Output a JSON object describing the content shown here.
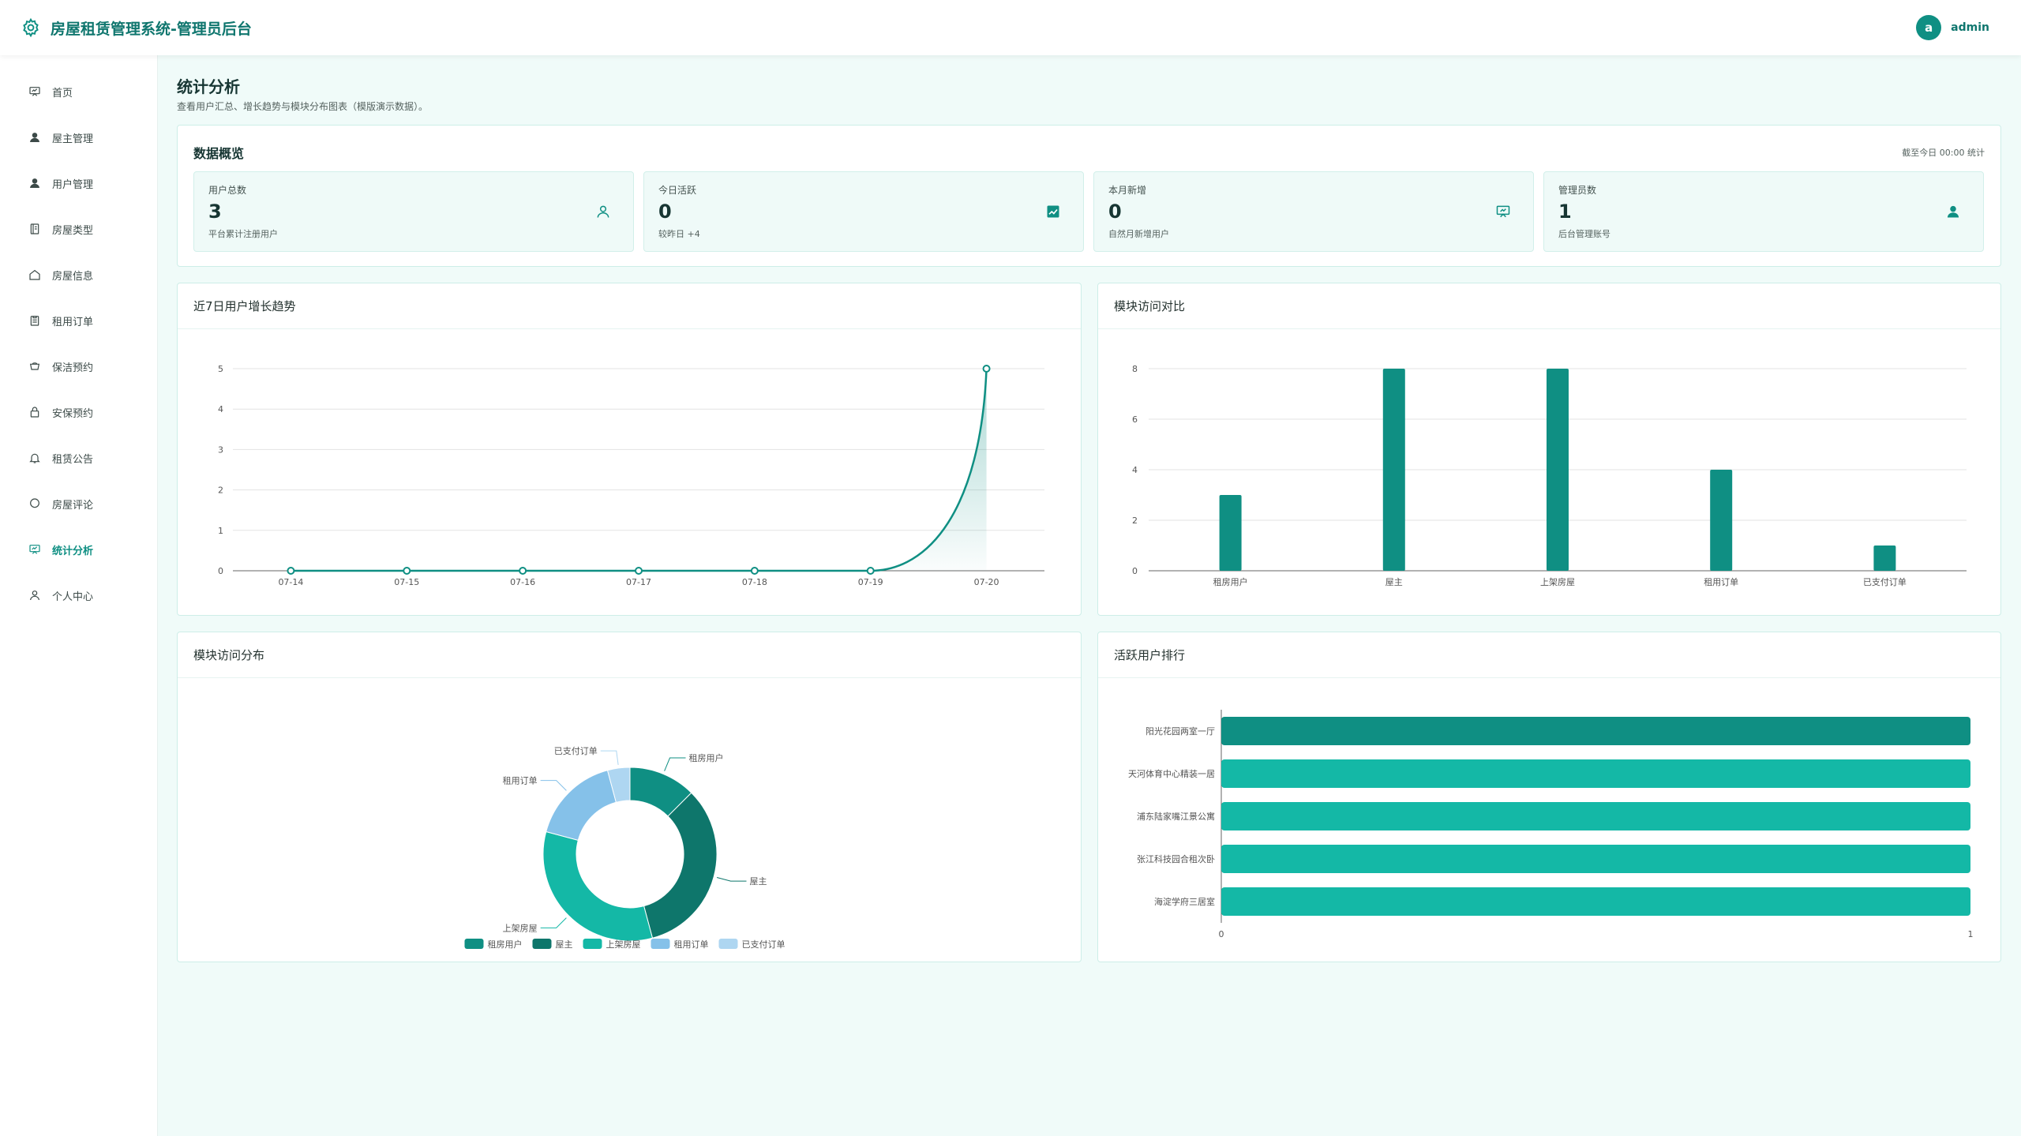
{
  "header": {
    "title": "房屋租赁管理系统-管理员后台",
    "avatar_letter": "a",
    "username": "admin"
  },
  "sidebar": {
    "items": [
      {
        "label": "首页",
        "icon": "dashboard-icon"
      },
      {
        "label": "屋主管理",
        "icon": "user-icon"
      },
      {
        "label": "用户管理",
        "icon": "user-icon"
      },
      {
        "label": "房屋类型",
        "icon": "notebook-icon"
      },
      {
        "label": "房屋信息",
        "icon": "house-icon"
      },
      {
        "label": "租用订单",
        "icon": "clipboard-icon"
      },
      {
        "label": "保洁预约",
        "icon": "cup-icon"
      },
      {
        "label": "安保预约",
        "icon": "lock-icon"
      },
      {
        "label": "租赁公告",
        "icon": "bell-icon"
      },
      {
        "label": "房屋评论",
        "icon": "comment-icon"
      },
      {
        "label": "统计分析",
        "icon": "chart-board-icon",
        "active": true
      },
      {
        "label": "个人中心",
        "icon": "user-icon"
      }
    ]
  },
  "page": {
    "title": "统计分析",
    "subtitle": "查看用户汇总、增长趋势与模块分布图表（模版演示数据）。"
  },
  "overview": {
    "title": "数据概览",
    "note": "截至今日 00:00 统计",
    "stats": [
      {
        "label": "用户总数",
        "value": "3",
        "desc": "平台累计注册用户",
        "icon": "user-icon"
      },
      {
        "label": "今日活跃",
        "value": "0",
        "desc": "较昨日 +4",
        "icon": "trend-chart-icon"
      },
      {
        "label": "本月新增",
        "value": "0",
        "desc": "自然月新增用户",
        "icon": "data-board-icon"
      },
      {
        "label": "管理员数",
        "value": "1",
        "desc": "后台管理账号",
        "icon": "user-filled-icon"
      }
    ]
  },
  "colors": {
    "primary": "#0f8f83",
    "dark": "#0e766b",
    "light": "#14b8a6",
    "blue": "#85c1e9",
    "pale": "#aed6f1"
  },
  "chart_data": [
    {
      "type": "line",
      "title": "近7日用户增长趋势",
      "x": [
        "07-14",
        "07-15",
        "07-16",
        "07-17",
        "07-18",
        "07-19",
        "07-20"
      ],
      "series": [
        {
          "values": [
            0,
            0,
            0,
            0,
            0,
            0,
            5
          ]
        }
      ],
      "ylim": [
        0,
        5
      ],
      "yticks": [
        0,
        1,
        2,
        3,
        4,
        5
      ],
      "grid": true
    },
    {
      "type": "bar",
      "title": "模块访问对比",
      "categories": [
        "租房用户",
        "屋主",
        "上架房屋",
        "租用订单",
        "已支付订单"
      ],
      "values": [
        3,
        8,
        8,
        4,
        1
      ],
      "ylim": [
        0,
        8
      ],
      "yticks": [
        0,
        2,
        4,
        6,
        8
      ],
      "grid": true
    },
    {
      "type": "pie",
      "title": "模块访问分布",
      "categories": [
        "租房用户",
        "屋主",
        "上架房屋",
        "租用订单",
        "已支付订单"
      ],
      "values": [
        3,
        8,
        8,
        4,
        1
      ],
      "legend": "bottom"
    },
    {
      "type": "bar",
      "orientation": "horizontal",
      "title": "活跃用户排行",
      "categories": [
        "阳光花园两室一厅",
        "天河体育中心精装一居",
        "浦东陆家嘴江景公寓",
        "张江科技园合租次卧",
        "海淀学府三居室"
      ],
      "values": [
        1,
        1,
        1,
        1,
        1
      ],
      "xlim": [
        0,
        1
      ],
      "xticks": [
        0,
        1
      ]
    }
  ]
}
